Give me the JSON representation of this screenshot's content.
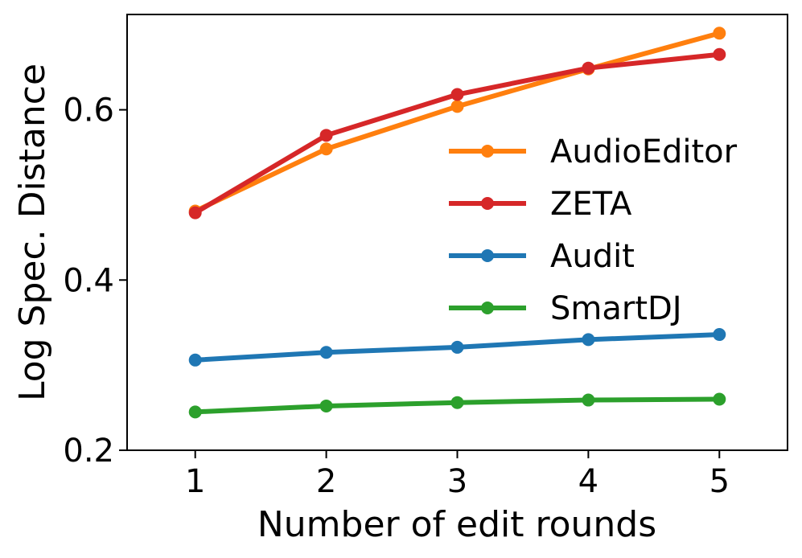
{
  "chart_data": {
    "type": "line",
    "title": "",
    "xlabel": "Number of edit rounds",
    "ylabel": "Log Spec. Distance",
    "x": [
      1,
      2,
      3,
      4,
      5
    ],
    "xticks": [
      "1",
      "2",
      "3",
      "4",
      "5"
    ],
    "yticks": [
      "0.2",
      "0.4",
      "0.6"
    ],
    "ytick_values": [
      0.2,
      0.4,
      0.6
    ],
    "xlim": [
      0.48,
      5.52
    ],
    "ylim": [
      0.2,
      0.712
    ],
    "grid": false,
    "legend_position": "right",
    "series": [
      {
        "name": "AudioEditor",
        "color": "#ff7f0e",
        "values": [
          0.481,
          0.554,
          0.604,
          0.648,
          0.69
        ]
      },
      {
        "name": "ZETA",
        "color": "#d62728",
        "values": [
          0.479,
          0.57,
          0.618,
          0.649,
          0.665
        ]
      },
      {
        "name": "Audit",
        "color": "#1f77b4",
        "values": [
          0.306,
          0.315,
          0.321,
          0.33,
          0.336
        ]
      },
      {
        "name": "SmartDJ",
        "color": "#2ca02c",
        "values": [
          0.245,
          0.252,
          0.256,
          0.259,
          0.26
        ]
      }
    ]
  }
}
